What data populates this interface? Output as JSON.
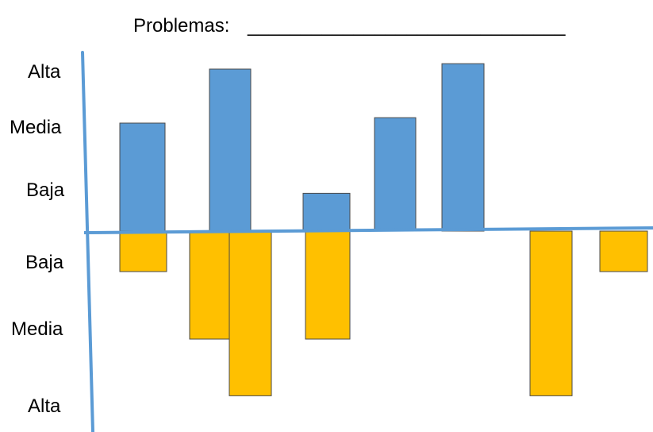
{
  "chart_data": {
    "type": "bar",
    "title": "Problemas:",
    "title_blank": "______________________________",
    "y_tick_labels_top": [
      "Alta",
      "Media",
      "Baja"
    ],
    "y_tick_labels_bottom": [
      "Baja",
      "Media",
      "Alta"
    ],
    "series": [
      {
        "color": "#5B9BD5",
        "values": [
          2.0,
          3.0,
          null,
          0.7,
          2.1,
          3.1,
          null,
          null
        ]
      },
      {
        "color": "#FFC000",
        "values": [
          -0.75,
          -2.0,
          -3.05,
          -2.0,
          null,
          null,
          -3.05,
          -0.75
        ]
      }
    ],
    "notes_categories": 8,
    "ylim": [
      -3.2,
      3.2
    ],
    "grid": false,
    "axis_color": "#5B9BD5"
  }
}
